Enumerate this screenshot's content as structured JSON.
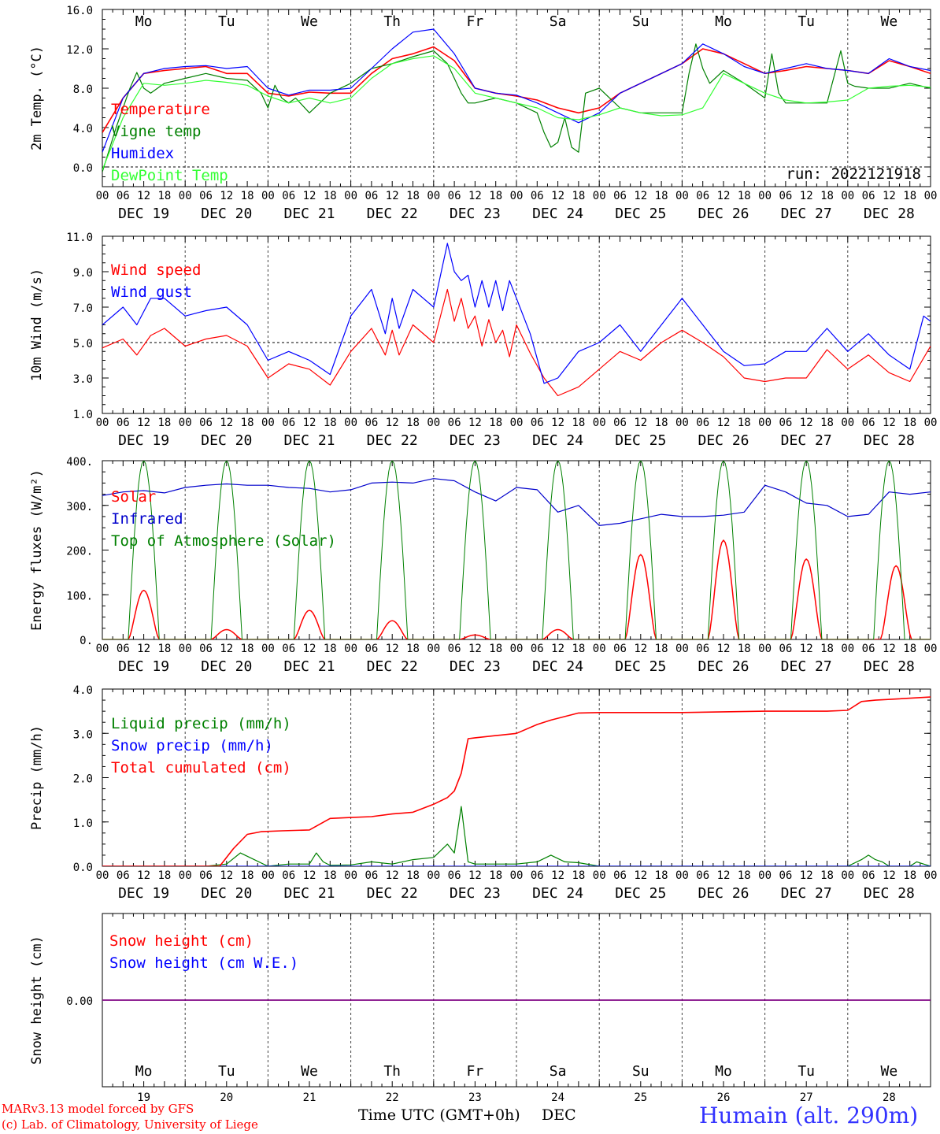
{
  "days": {
    "weekday": [
      "Mo",
      "Tu",
      "We",
      "Th",
      "Fr",
      "Sa",
      "Su",
      "Mo",
      "Tu",
      "We"
    ],
    "date": [
      "DEC 19",
      "DEC 20",
      "DEC 21",
      "DEC 22",
      "DEC 23",
      "DEC 24",
      "DEC 25",
      "DEC 26",
      "DEC 27",
      "DEC 28"
    ],
    "daynum": [
      "19",
      "20",
      "21",
      "22",
      "23",
      "24",
      "25",
      "26",
      "27",
      "28"
    ],
    "weekend_color": "#ff0000",
    "hour_ticks": [
      "00",
      "06",
      "12",
      "18"
    ],
    "final_tick": "00"
  },
  "chart_data": [
    {
      "type": "line",
      "id": "temp",
      "ylabel": "2m Temp. (°C)",
      "ylim": [
        -2,
        16
      ],
      "yticks": [
        "16.0",
        "12.0",
        "8.0",
        "4.0",
        "0.0"
      ],
      "yticks_values": [
        16,
        12,
        8,
        4,
        0
      ],
      "refline": 0,
      "annotation": "run: 2022121918",
      "x_unit": "hours since 00 DEC 19",
      "series": [
        {
          "name": "Temperature",
          "color": "#ff0000",
          "x": [
            0,
            6,
            12,
            18,
            24,
            30,
            36,
            42,
            48,
            54,
            60,
            66,
            72,
            78,
            84,
            90,
            96,
            102,
            108,
            114,
            120,
            126,
            132,
            138,
            144,
            150,
            156,
            162,
            168,
            174,
            180,
            186,
            192,
            198,
            204,
            210,
            216,
            222,
            228,
            234,
            240
          ],
          "y": [
            3.5,
            7,
            9.5,
            9.8,
            10,
            10.2,
            9.5,
            9.5,
            7.5,
            7.2,
            7.6,
            7.5,
            7.5,
            9.5,
            11,
            11.5,
            12.2,
            10.8,
            8,
            7.5,
            7.2,
            6.8,
            6,
            5.5,
            6,
            7.5,
            8.5,
            9.5,
            10.5,
            12,
            11.5,
            10.5,
            9.5,
            9.8,
            10.2,
            10,
            9.8,
            9.5,
            10.8,
            10.2,
            9.5
          ]
        },
        {
          "name": "Vigne temp",
          "color": "#008000",
          "x": [
            0,
            4,
            8,
            10,
            12,
            14,
            18,
            24,
            30,
            36,
            42,
            46,
            48,
            50,
            52,
            54,
            56,
            60,
            66,
            72,
            78,
            84,
            90,
            96,
            100,
            102,
            104,
            106,
            108,
            114,
            120,
            126,
            128,
            130,
            132,
            134,
            136,
            138,
            140,
            144,
            150,
            156,
            162,
            168,
            170,
            172,
            174,
            176,
            180,
            186,
            190,
            192,
            194,
            196,
            198,
            200,
            204,
            210,
            214,
            216,
            218,
            222,
            228,
            234,
            240
          ],
          "y": [
            -0.5,
            4,
            8,
            9.6,
            8,
            7.5,
            8.5,
            9,
            9.5,
            9,
            8.8,
            7.5,
            6,
            8.3,
            7,
            6.5,
            7,
            5.5,
            7.5,
            8.5,
            10,
            10.5,
            11.2,
            11.8,
            10.5,
            9,
            7.5,
            6.5,
            6.5,
            7,
            6.5,
            5.5,
            3.5,
            2,
            2.5,
            5,
            2,
            1.5,
            7.5,
            8,
            6,
            5.5,
            5.5,
            5.5,
            9.5,
            12.5,
            10,
            8.5,
            9.8,
            8.5,
            7.5,
            7,
            11.5,
            7.5,
            6.5,
            6.5,
            6.5,
            6.5,
            11.8,
            8.5,
            8.2,
            8,
            8,
            8.5,
            8
          ]
        },
        {
          "name": "Humidex",
          "color": "#0000ff",
          "x": [
            0,
            6,
            12,
            18,
            24,
            30,
            36,
            42,
            48,
            54,
            60,
            66,
            72,
            78,
            84,
            90,
            96,
            102,
            108,
            114,
            120,
            126,
            132,
            138,
            144,
            150,
            156,
            162,
            168,
            174,
            180,
            186,
            192,
            198,
            204,
            210,
            216,
            222,
            228,
            234,
            240
          ],
          "y": [
            1.5,
            7,
            9.5,
            10,
            10.2,
            10.3,
            10,
            10.2,
            8,
            7.3,
            7.8,
            7.8,
            8,
            10,
            12,
            13.7,
            14,
            11.5,
            8,
            7.5,
            7.3,
            6.5,
            5.5,
            4.5,
            5.5,
            7.5,
            8.5,
            9.5,
            10.5,
            12.5,
            11.5,
            10.2,
            9.5,
            10,
            10.5,
            10,
            9.8,
            9.5,
            11,
            10.2,
            9.8
          ]
        },
        {
          "name": "DewPoint Temp",
          "color": "#33ff33",
          "x": [
            0,
            6,
            12,
            18,
            24,
            30,
            36,
            42,
            48,
            54,
            60,
            66,
            72,
            78,
            84,
            90,
            96,
            102,
            108,
            114,
            120,
            126,
            132,
            138,
            144,
            150,
            156,
            162,
            168,
            174,
            180,
            186,
            192,
            198,
            204,
            210,
            216,
            222,
            228,
            234,
            240
          ],
          "y": [
            -0.3,
            5,
            8.5,
            8.3,
            8.5,
            8.8,
            8.6,
            8.3,
            7.2,
            6.5,
            7,
            6.5,
            7,
            9,
            10.5,
            11,
            11.3,
            10,
            7.5,
            7,
            6.5,
            6,
            5,
            4.8,
            5.3,
            6,
            5.5,
            5.2,
            5.3,
            6,
            9.5,
            8.5,
            7.5,
            6.8,
            6.5,
            6.6,
            6.8,
            8,
            8.2,
            8.3,
            8.1
          ]
        }
      ]
    },
    {
      "type": "line",
      "id": "wind",
      "ylabel": "10m Wind (m/s)",
      "ylim": [
        1,
        11
      ],
      "yticks": [
        "11.0",
        "9.0",
        "7.0",
        "5.0",
        "3.0",
        "1.0"
      ],
      "yticks_values": [
        11,
        9,
        7,
        5,
        3,
        1
      ],
      "refline": 5,
      "x_unit": "hours since 00 DEC 19",
      "series": [
        {
          "name": "Wind speed",
          "color": "#ff0000",
          "x": [
            0,
            6,
            10,
            14,
            18,
            24,
            30,
            36,
            42,
            48,
            54,
            60,
            66,
            72,
            78,
            82,
            84,
            86,
            90,
            96,
            100,
            102,
            104,
            106,
            108,
            110,
            112,
            114,
            116,
            118,
            120,
            124,
            128,
            132,
            138,
            144,
            150,
            156,
            162,
            168,
            174,
            180,
            186,
            192,
            198,
            204,
            210,
            216,
            222,
            228,
            234,
            240
          ],
          "y": [
            4.7,
            5.2,
            4.3,
            5.4,
            5.8,
            4.8,
            5.2,
            5.4,
            4.8,
            3,
            3.8,
            3.5,
            2.6,
            4.5,
            5.8,
            4.3,
            5.7,
            4.3,
            6,
            5,
            8,
            6.2,
            7.5,
            5.8,
            6.5,
            4.8,
            6.3,
            5,
            5.7,
            4.2,
            6,
            4.4,
            3,
            2,
            2.5,
            3.5,
            4.5,
            4,
            5,
            5.7,
            5,
            4.2,
            3,
            2.8,
            3,
            3,
            4.6,
            3.5,
            4.3,
            3.3,
            2.8,
            4.8
          ]
        },
        {
          "name": "Wind gust",
          "color": "#0000ff",
          "x": [
            0,
            6,
            10,
            14,
            18,
            24,
            30,
            36,
            42,
            48,
            54,
            60,
            66,
            72,
            78,
            82,
            84,
            86,
            90,
            96,
            100,
            102,
            104,
            106,
            108,
            110,
            112,
            114,
            116,
            118,
            120,
            124,
            128,
            132,
            138,
            144,
            150,
            156,
            162,
            168,
            174,
            180,
            186,
            192,
            198,
            204,
            210,
            216,
            222,
            228,
            234,
            238,
            240
          ],
          "y": [
            6,
            7,
            6,
            7.5,
            7.5,
            6.5,
            6.8,
            7,
            6,
            4,
            4.5,
            4,
            3.2,
            6.5,
            8,
            5.5,
            7.5,
            5.8,
            8,
            7,
            10.6,
            9,
            8.5,
            8.8,
            7,
            8.5,
            7,
            8.5,
            6.8,
            8.5,
            7.5,
            5.5,
            2.7,
            3,
            4.5,
            5,
            6,
            4.5,
            6,
            7.5,
            6,
            4.5,
            3.7,
            3.8,
            4.5,
            4.5,
            5.8,
            4.5,
            5.5,
            4.3,
            3.5,
            6.5,
            6.2
          ]
        }
      ]
    },
    {
      "type": "line",
      "id": "flux",
      "ylabel": "Energy fluxes (W/m²)",
      "ylim": [
        0,
        400
      ],
      "yticks": [
        "400.",
        "300.",
        "200.",
        "100.",
        "0."
      ],
      "yticks_values": [
        400,
        300,
        200,
        100,
        0
      ],
      "x_unit": "hours since 00 DEC 19",
      "series": [
        {
          "name": "Solar",
          "color": "#ff0000",
          "peaks": [
            110,
            22,
            65,
            42,
            10,
            22,
            190,
            222,
            180,
            165
          ],
          "peak_hour": [
            12,
            12,
            12,
            12,
            12,
            12,
            12,
            12,
            12,
            14
          ]
        },
        {
          "name": "Infrared",
          "color": "#0000cc",
          "x": [
            0,
            6,
            12,
            18,
            24,
            30,
            36,
            42,
            48,
            54,
            60,
            66,
            72,
            78,
            84,
            90,
            96,
            102,
            108,
            114,
            120,
            126,
            132,
            138,
            144,
            150,
            156,
            162,
            168,
            174,
            180,
            186,
            192,
            198,
            204,
            210,
            216,
            222,
            228,
            234,
            240
          ],
          "y": [
            322,
            330,
            333,
            328,
            340,
            345,
            348,
            345,
            345,
            340,
            338,
            330,
            335,
            350,
            352,
            350,
            360,
            355,
            330,
            310,
            340,
            335,
            285,
            300,
            255,
            260,
            270,
            280,
            275,
            275,
            278,
            285,
            345,
            330,
            305,
            300,
            275,
            280,
            330,
            325,
            330
          ]
        },
        {
          "name": "Top of Atmosphere (Solar)",
          "color": "#008000",
          "peak": 400,
          "sunrise": 7.5,
          "sunset": 16.5
        }
      ]
    },
    {
      "type": "line",
      "id": "precip",
      "ylabel": "Precip (mm/h)",
      "ylim": [
        0,
        4
      ],
      "yticks": [
        "4.0",
        "3.0",
        "2.0",
        "1.0",
        "0.0"
      ],
      "yticks_values": [
        4,
        3,
        2,
        1,
        0
      ],
      "x_unit": "hours since 00 DEC 19",
      "series": [
        {
          "name": "Liquid precip (mm/h)",
          "color": "#008000",
          "x": [
            0,
            30,
            36,
            40,
            44,
            48,
            54,
            60,
            62,
            64,
            66,
            72,
            78,
            84,
            90,
            96,
            100,
            102,
            104,
            106,
            108,
            112,
            120,
            126,
            130,
            134,
            138,
            144,
            150,
            160,
            192,
            198,
            216,
            220,
            222,
            224,
            226,
            228,
            234,
            236,
            240
          ],
          "y": [
            0,
            0,
            0.05,
            0.3,
            0.15,
            0,
            0.05,
            0.05,
            0.3,
            0.1,
            0.02,
            0.03,
            0.1,
            0.05,
            0.15,
            0.2,
            0.5,
            0.3,
            1.35,
            0.1,
            0.05,
            0.05,
            0.05,
            0.1,
            0.25,
            0.1,
            0.08,
            0,
            0,
            0,
            0,
            0,
            0,
            0.15,
            0.25,
            0.15,
            0.1,
            0,
            0,
            0.1,
            0
          ]
        },
        {
          "name": "Snow precip (mm/h)",
          "color": "#0000ff",
          "x": [
            0,
            240
          ],
          "y": [
            0,
            0
          ]
        },
        {
          "name": "Total cumulated (cm)",
          "color": "#ff0000",
          "x": [
            0,
            34,
            38,
            42,
            46,
            52,
            60,
            66,
            72,
            78,
            84,
            90,
            96,
            100,
            102,
            104,
            106,
            108,
            114,
            120,
            126,
            130,
            138,
            144,
            150,
            156,
            162,
            168,
            192,
            210,
            216,
            220,
            224,
            240
          ],
          "y": [
            0,
            0,
            0.4,
            0.72,
            0.78,
            0.8,
            0.82,
            1.08,
            1.1,
            1.12,
            1.18,
            1.22,
            1.4,
            1.55,
            1.7,
            2.1,
            2.88,
            2.9,
            2.95,
            3.0,
            3.2,
            3.3,
            3.46,
            3.47,
            3.47,
            3.47,
            3.47,
            3.47,
            3.5,
            3.5,
            3.52,
            3.72,
            3.75,
            3.82
          ]
        }
      ]
    },
    {
      "type": "line",
      "id": "snow",
      "ylabel": "Snow height (cm)",
      "yticks": [
        "0.00"
      ],
      "yticks_values": [
        0
      ],
      "x_unit": "hours since 00 DEC 19",
      "series": [
        {
          "name": "Snow height (cm)",
          "color": "#ff0000",
          "x": [
            0,
            240
          ],
          "y": [
            0,
            0
          ]
        },
        {
          "name": "Snow height (cm W.E.)",
          "color": "#0000ff",
          "x": [
            0,
            240
          ],
          "y": [
            0,
            0
          ]
        }
      ]
    }
  ],
  "footer": {
    "credit1": "MARv3.13 model forced by GFS",
    "credit2": "(c) Lab. of Climatology, University of Liege",
    "xlabel": "Time UTC (GMT+0h)",
    "month": "DEC",
    "station": "Humain (alt. 290m)",
    "credit_color": "#ff0000",
    "station_color": "#3333ff"
  }
}
